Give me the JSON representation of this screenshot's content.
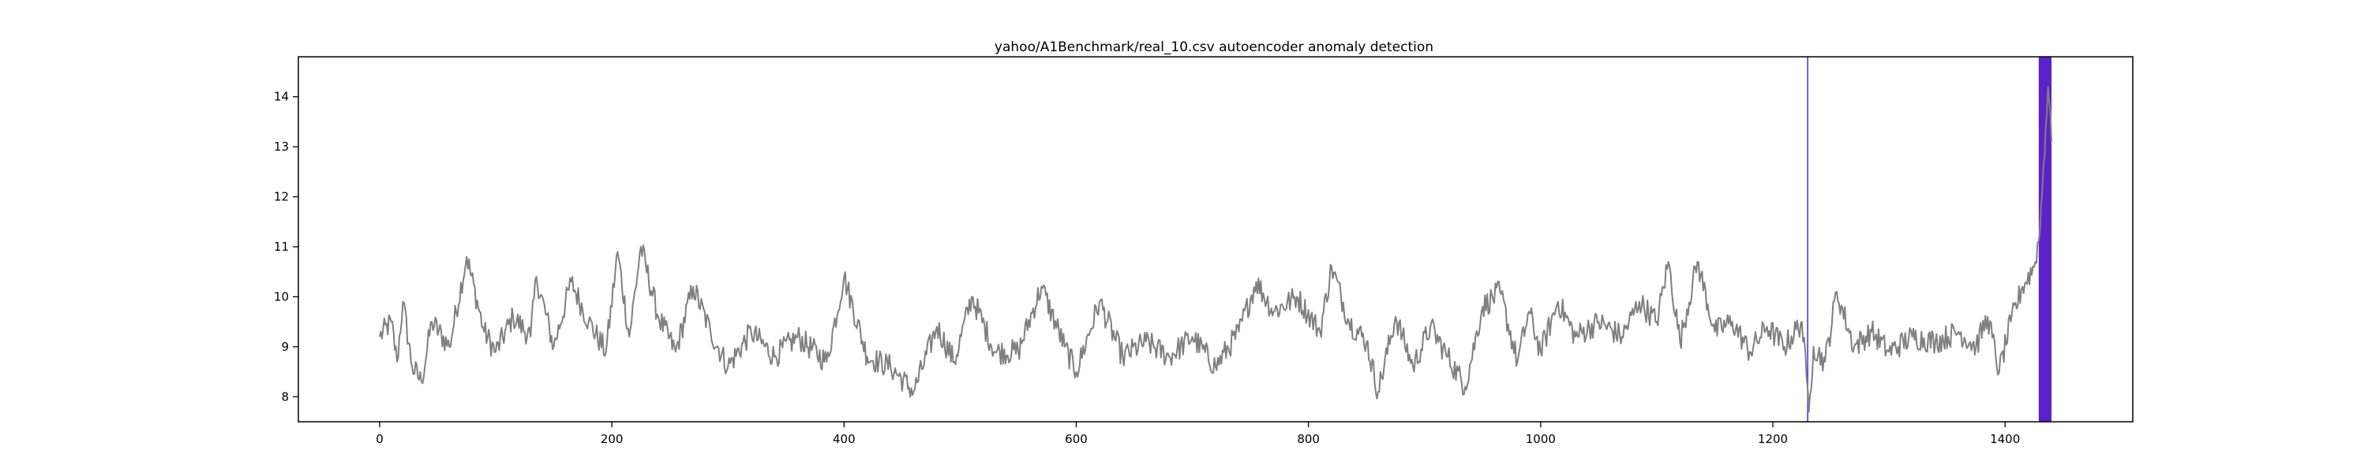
{
  "chart_data": {
    "type": "line",
    "title": "yahoo/A1Benchmark/real_10.csv autoencoder anomaly detection",
    "xlabel": "",
    "ylabel": "",
    "xlim": [
      -70,
      1510
    ],
    "ylim": [
      7.5,
      14.8
    ],
    "x_ticks": [
      0,
      200,
      400,
      600,
      800,
      1000,
      1200,
      1400
    ],
    "y_ticks": [
      8,
      9,
      10,
      11,
      12,
      13,
      14
    ],
    "grid": false,
    "legend": "none",
    "series": [
      {
        "color": "#808080",
        "x_start": 0,
        "x_step": 1,
        "keypoints": [
          [
            0,
            9.2
          ],
          [
            10,
            9.5
          ],
          [
            15,
            8.7
          ],
          [
            20,
            9.9
          ],
          [
            28,
            8.6
          ],
          [
            36,
            8.3
          ],
          [
            45,
            9.5
          ],
          [
            60,
            9.0
          ],
          [
            75,
            10.8
          ],
          [
            90,
            9.3
          ],
          [
            100,
            8.9
          ],
          [
            115,
            9.6
          ],
          [
            130,
            9.2
          ],
          [
            135,
            10.4
          ],
          [
            150,
            9.0
          ],
          [
            165,
            10.3
          ],
          [
            180,
            9.5
          ],
          [
            195,
            8.9
          ],
          [
            205,
            10.9
          ],
          [
            215,
            9.2
          ],
          [
            225,
            11.0
          ],
          [
            240,
            9.6
          ],
          [
            255,
            8.9
          ],
          [
            270,
            10.2
          ],
          [
            285,
            9.3
          ],
          [
            300,
            8.6
          ],
          [
            320,
            9.3
          ],
          [
            340,
            8.8
          ],
          [
            360,
            9.2
          ],
          [
            385,
            8.7
          ],
          [
            400,
            10.4
          ],
          [
            420,
            8.8
          ],
          [
            440,
            8.6
          ],
          [
            460,
            8.1
          ],
          [
            480,
            9.4
          ],
          [
            495,
            8.7
          ],
          [
            510,
            10.0
          ],
          [
            530,
            8.9
          ],
          [
            550,
            8.9
          ],
          [
            570,
            10.2
          ],
          [
            590,
            9.0
          ],
          [
            600,
            8.5
          ],
          [
            620,
            9.9
          ],
          [
            640,
            8.8
          ],
          [
            660,
            9.1
          ],
          [
            680,
            8.8
          ],
          [
            700,
            9.2
          ],
          [
            720,
            8.6
          ],
          [
            740,
            9.3
          ],
          [
            755,
            10.3
          ],
          [
            770,
            9.7
          ],
          [
            790,
            10.0
          ],
          [
            810,
            9.3
          ],
          [
            820,
            10.6
          ],
          [
            835,
            9.5
          ],
          [
            850,
            9.1
          ],
          [
            860,
            8.1
          ],
          [
            875,
            9.6
          ],
          [
            890,
            8.6
          ],
          [
            905,
            9.4
          ],
          [
            920,
            8.8
          ],
          [
            935,
            8.2
          ],
          [
            950,
            9.8
          ],
          [
            965,
            10.1
          ],
          [
            980,
            8.7
          ],
          [
            990,
            9.7
          ],
          [
            1000,
            8.9
          ],
          [
            1015,
            9.9
          ],
          [
            1030,
            9.2
          ],
          [
            1050,
            9.5
          ],
          [
            1070,
            9.2
          ],
          [
            1085,
            9.9
          ],
          [
            1100,
            9.5
          ],
          [
            1110,
            10.7
          ],
          [
            1120,
            9.1
          ],
          [
            1135,
            10.7
          ],
          [
            1150,
            9.3
          ],
          [
            1165,
            9.5
          ],
          [
            1180,
            8.9
          ],
          [
            1195,
            9.4
          ],
          [
            1210,
            9.0
          ],
          [
            1225,
            9.5
          ],
          [
            1229,
            8.4
          ],
          [
            1231,
            7.7
          ],
          [
            1235,
            9.0
          ],
          [
            1245,
            8.7
          ],
          [
            1255,
            10.1
          ],
          [
            1270,
            9.0
          ],
          [
            1285,
            9.3
          ],
          [
            1300,
            8.9
          ],
          [
            1320,
            9.2
          ],
          [
            1340,
            9.1
          ],
          [
            1360,
            9.3
          ],
          [
            1375,
            9.0
          ],
          [
            1385,
            9.6
          ],
          [
            1395,
            8.5
          ],
          [
            1405,
            9.5
          ],
          [
            1415,
            10.2
          ],
          [
            1425,
            10.6
          ],
          [
            1430,
            11.3
          ],
          [
            1433,
            12.6
          ],
          [
            1437,
            14.2
          ],
          [
            1440,
            13.1
          ]
        ]
      }
    ],
    "anomalies": [
      {
        "type": "line",
        "x": 1230,
        "color": "#4040e0"
      },
      {
        "type": "span",
        "x": [
          1429,
          1440
        ],
        "color": "#5a22c8"
      }
    ]
  }
}
